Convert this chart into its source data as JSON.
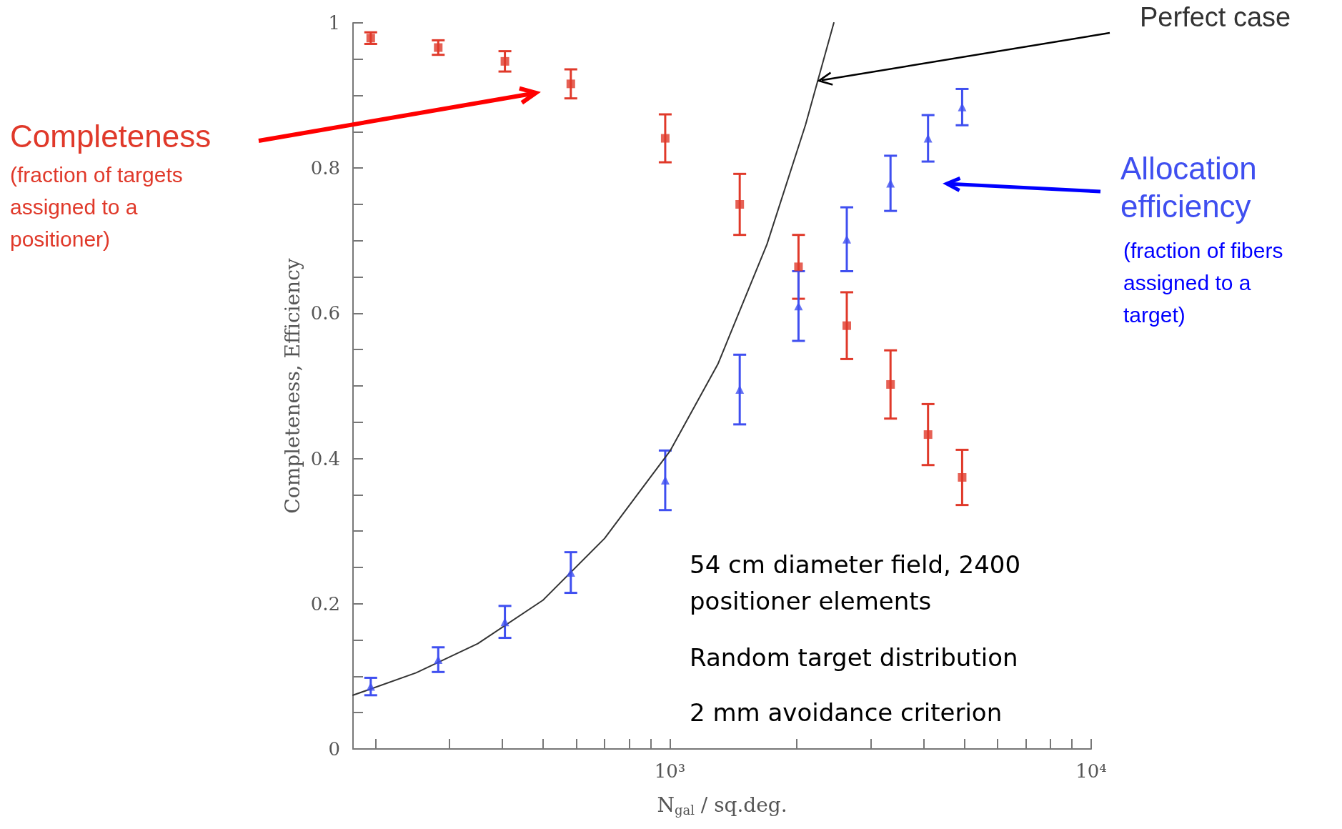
{
  "chart_data": {
    "type": "scatter",
    "xlabel": "N$_{gal}$ / sq.deg.",
    "ylabel": "Completeness, Efficiency",
    "log": "x",
    "xlim": [
      177,
      10000
    ],
    "xticks": [
      {
        "value": 200,
        "label": null
      },
      {
        "value": 300,
        "label": null
      },
      {
        "value": 400,
        "label": null
      },
      {
        "value": 500,
        "label": null
      },
      {
        "value": 600,
        "label": null
      },
      {
        "value": 700,
        "label": null
      },
      {
        "value": 800,
        "label": null
      },
      {
        "value": 900,
        "label": null
      },
      {
        "value": 1000,
        "label": "10³"
      },
      {
        "value": 2000,
        "label": null
      },
      {
        "value": 3000,
        "label": null
      },
      {
        "value": 4000,
        "label": null
      },
      {
        "value": 5000,
        "label": null
      },
      {
        "value": 6000,
        "label": null
      },
      {
        "value": 7000,
        "label": null
      },
      {
        "value": 8000,
        "label": null
      },
      {
        "value": 9000,
        "label": null
      },
      {
        "value": 10000,
        "label": "10⁴"
      }
    ],
    "ylim": [
      0,
      1
    ],
    "yticks": [
      0,
      {
        "value": 0.05,
        "label": null
      },
      {
        "value": 0.1,
        "label": null
      },
      {
        "value": 0.15,
        "label": null
      },
      0.2,
      {
        "value": 0.25,
        "label": null
      },
      {
        "value": 0.3,
        "label": null
      },
      {
        "value": 0.35,
        "label": null
      },
      0.4,
      {
        "value": 0.45,
        "label": null
      },
      {
        "value": 0.5,
        "label": null
      },
      {
        "value": 0.55,
        "label": null
      },
      0.6,
      {
        "value": 0.65,
        "label": null
      },
      {
        "value": 0.7,
        "label": null
      },
      {
        "value": 0.75,
        "label": null
      },
      0.8,
      {
        "value": 0.85,
        "label": null
      },
      {
        "value": 0.9,
        "label": null
      },
      {
        "value": 0.95,
        "label": null
      },
      1
    ],
    "grid": false,
    "legend": false,
    "x": [
      195,
      282,
      406,
      582,
      975,
      1465,
      2020,
      2630,
      3340,
      4100,
      4940
    ],
    "series": [
      {
        "name": "Completeness",
        "color": "#e0392a",
        "marker": "square",
        "values": [
          0.979,
          0.966,
          0.947,
          0.916,
          0.841,
          0.75,
          0.664,
          0.583,
          0.502,
          0.433,
          0.374
        ],
        "errors": [
          0.008,
          0.01,
          0.014,
          0.02,
          0.033,
          0.042,
          0.044,
          0.046,
          0.047,
          0.042,
          0.038
        ]
      },
      {
        "name": "Allocation efficiency",
        "color": "#3f4ff0",
        "marker": "triangle",
        "values": [
          0.086,
          0.123,
          0.175,
          0.243,
          0.37,
          0.495,
          0.61,
          0.702,
          0.779,
          0.841,
          0.884
        ],
        "errors": [
          0.012,
          0.017,
          0.022,
          0.028,
          0.041,
          0.048,
          0.048,
          0.044,
          0.038,
          0.032,
          0.025
        ]
      },
      {
        "name": "Perfect case",
        "type": "line",
        "color": "#333333",
        "marker": "none",
        "line_style": "solid",
        "x": [
          177,
          250,
          350,
          500,
          700,
          1000,
          1300,
          1700,
          2100,
          2450
        ],
        "values": [
          0.074,
          0.105,
          0.145,
          0.205,
          0.29,
          0.41,
          0.53,
          0.695,
          0.86,
          1.0
        ]
      }
    ],
    "annotations": [
      "(fraction of targets assigned to a positioner)",
      "(fraction of fibers assigned to a target)",
      "54 cm diameter field, 2400 positioner elements",
      "Random target distribution",
      "2 mm avoidance criterion"
    ]
  }
}
